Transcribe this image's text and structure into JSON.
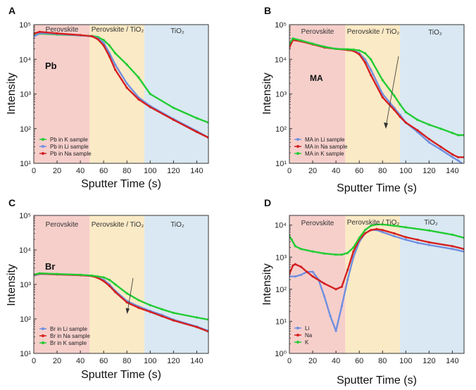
{
  "figure": {
    "panels": [
      {
        "letter": "A",
        "inset_label": "Pb",
        "regions": [
          "Perovskite",
          "Perovskite / TiO₂",
          "TiO₂"
        ]
      },
      {
        "letter": "B",
        "inset_label": "MA",
        "regions": [
          "Perovskite",
          "Perovskite / TiO₂",
          "TiO₂"
        ]
      },
      {
        "letter": "C",
        "inset_label": "Br",
        "regions": [
          "Perovskite",
          "Perovskite / TiO₂",
          "TiO₂"
        ]
      },
      {
        "letter": "D",
        "inset_label": "",
        "regions": [
          "Perovskite",
          "Perovskite / TiO₂",
          "TiO₂"
        ]
      }
    ]
  },
  "chart_data": [
    {
      "type": "line",
      "title": "",
      "xlabel": "Sputter Time (s)",
      "ylabel": "Intensity",
      "xlim": [
        0,
        150
      ],
      "ylim": [
        10,
        100000
      ],
      "yscale": "log",
      "xticks": [
        0,
        20,
        40,
        60,
        80,
        100,
        120,
        140
      ],
      "region_colors": [
        "#f6cfcb",
        "#fbeac6",
        "#d9e8f2"
      ],
      "region_bounds": [
        0,
        48,
        95,
        150
      ],
      "legend_position": "lower-left",
      "series": [
        {
          "name": "Pb in K sample",
          "color": "#22cc33",
          "x": [
            0,
            5,
            20,
            40,
            50,
            55,
            60,
            65,
            70,
            80,
            90,
            100,
            120,
            140,
            150
          ],
          "y": [
            48000,
            55000,
            52000,
            49000,
            47000,
            44000,
            36000,
            25000,
            15000,
            7000,
            3000,
            1000,
            400,
            200,
            150
          ]
        },
        {
          "name": "Pb in Li sample",
          "color": "#6f8fe0",
          "x": [
            0,
            5,
            20,
            40,
            50,
            55,
            60,
            65,
            70,
            80,
            90,
            100,
            120,
            140,
            150
          ],
          "y": [
            45000,
            57000,
            54000,
            49000,
            46000,
            40000,
            30000,
            15000,
            7000,
            2000,
            800,
            450,
            190,
            85,
            55
          ]
        },
        {
          "name": "Pb in Na sample",
          "color": "#d42020",
          "x": [
            0,
            5,
            20,
            40,
            50,
            55,
            60,
            65,
            70,
            80,
            90,
            100,
            120,
            140,
            150
          ],
          "y": [
            55000,
            62000,
            56000,
            50000,
            46000,
            38000,
            25000,
            12000,
            5000,
            1500,
            700,
            420,
            180,
            80,
            55
          ]
        }
      ]
    },
    {
      "type": "line",
      "title": "",
      "xlabel": "Sputter Time (s)",
      "ylabel": "Intensity",
      "xlim": [
        0,
        150
      ],
      "ylim": [
        10,
        100000
      ],
      "yscale": "log",
      "xticks": [
        0,
        20,
        40,
        60,
        80,
        100,
        120,
        140
      ],
      "region_colors": [
        "#f6cfcb",
        "#fbeac6",
        "#d9e8f2"
      ],
      "region_bounds": [
        0,
        48,
        95,
        150
      ],
      "legend_position": "lower-left",
      "series": [
        {
          "name": "MA in Li sample",
          "color": "#6f8fe0",
          "x": [
            0,
            3,
            10,
            20,
            30,
            40,
            50,
            55,
            60,
            65,
            70,
            80,
            90,
            95,
            100,
            110,
            120,
            130,
            140,
            145,
            150
          ],
          "y": [
            25000,
            38000,
            34000,
            28000,
            23000,
            20000,
            19000,
            18000,
            15000,
            10000,
            5000,
            1000,
            400,
            250,
            150,
            80,
            40,
            25,
            15,
            12,
            9
          ]
        },
        {
          "name": "MA in Na sample",
          "color": "#d42020",
          "x": [
            0,
            3,
            10,
            20,
            30,
            40,
            50,
            55,
            60,
            65,
            70,
            80,
            90,
            95,
            100,
            110,
            120,
            130,
            140,
            145,
            150
          ],
          "y": [
            22000,
            36000,
            33000,
            27000,
            22000,
            20000,
            18500,
            17500,
            14000,
            8000,
            3500,
            800,
            350,
            220,
            150,
            90,
            50,
            30,
            18,
            15,
            15
          ]
        },
        {
          "name": "MA in K sample",
          "color": "#22cc33",
          "x": [
            0,
            3,
            10,
            20,
            30,
            40,
            50,
            55,
            60,
            65,
            70,
            80,
            90,
            95,
            100,
            110,
            120,
            130,
            140,
            145,
            150
          ],
          "y": [
            28000,
            40000,
            35000,
            28000,
            23000,
            20000,
            19500,
            19000,
            18000,
            15000,
            10000,
            2500,
            900,
            500,
            300,
            180,
            130,
            100,
            75,
            65,
            65
          ]
        }
      ]
    },
    {
      "type": "line",
      "title": "",
      "xlabel": "Sputter Time (s)",
      "ylabel": "Intensity",
      "xlim": [
        0,
        150
      ],
      "ylim": [
        10,
        100000
      ],
      "yscale": "log",
      "xticks": [
        0,
        20,
        40,
        60,
        80,
        100,
        120,
        140
      ],
      "region_colors": [
        "#f6cfcb",
        "#fbeac6",
        "#d9e8f2"
      ],
      "region_bounds": [
        0,
        48,
        95,
        150
      ],
      "legend_position": "lower-left",
      "series": [
        {
          "name": "Br in Li sample",
          "color": "#6f8fe0",
          "x": [
            0,
            5,
            20,
            40,
            50,
            55,
            60,
            65,
            70,
            80,
            90,
            100,
            110,
            120,
            140,
            150
          ],
          "y": [
            1800,
            2000,
            1950,
            1850,
            1750,
            1600,
            1350,
            1000,
            650,
            330,
            230,
            170,
            130,
            95,
            60,
            45
          ]
        },
        {
          "name": "Br in Na sample",
          "color": "#d42020",
          "x": [
            0,
            5,
            20,
            40,
            50,
            55,
            60,
            65,
            70,
            80,
            90,
            100,
            110,
            120,
            140,
            150
          ],
          "y": [
            1850,
            2050,
            1950,
            1850,
            1750,
            1550,
            1250,
            900,
            600,
            300,
            210,
            160,
            120,
            90,
            58,
            43
          ]
        },
        {
          "name": "Br in K sample",
          "color": "#22cc33",
          "x": [
            0,
            5,
            20,
            40,
            50,
            55,
            60,
            65,
            70,
            80,
            90,
            100,
            110,
            120,
            140,
            150
          ],
          "y": [
            1900,
            2100,
            2000,
            1900,
            1800,
            1700,
            1600,
            1350,
            1000,
            550,
            350,
            250,
            190,
            150,
            110,
            95
          ]
        }
      ]
    },
    {
      "type": "line",
      "title": "",
      "xlabel": "Sputter Time (s)",
      "ylabel": "Intensity",
      "xlim": [
        0,
        150
      ],
      "ylim": [
        1,
        20000
      ],
      "yscale": "log",
      "xticks": [
        0,
        20,
        40,
        60,
        80,
        100,
        120,
        140
      ],
      "region_colors": [
        "#f6cfcb",
        "#fbeac6",
        "#d9e8f2"
      ],
      "region_bounds": [
        0,
        48,
        95,
        150
      ],
      "legend_position": "lower-left",
      "series": [
        {
          "name": "Li",
          "color": "#6f8fe0",
          "x": [
            0,
            5,
            10,
            15,
            20,
            25,
            30,
            35,
            40,
            45,
            50,
            55,
            60,
            65,
            70,
            75,
            80,
            90,
            100,
            110,
            120,
            140,
            150
          ],
          "y": [
            250,
            250,
            280,
            350,
            350,
            200,
            60,
            15,
            5,
            30,
            200,
            1000,
            3000,
            5500,
            7000,
            7000,
            6000,
            4500,
            3500,
            2800,
            2400,
            1800,
            1500
          ]
        },
        {
          "name": "Na",
          "color": "#d42020",
          "x": [
            0,
            3,
            5,
            10,
            15,
            20,
            30,
            40,
            45,
            50,
            55,
            60,
            65,
            70,
            75,
            80,
            90,
            100,
            110,
            120,
            140,
            150
          ],
          "y": [
            300,
            550,
            600,
            500,
            350,
            250,
            150,
            100,
            120,
            400,
            1500,
            3500,
            5500,
            7000,
            7500,
            7000,
            5500,
            4200,
            3500,
            2900,
            2200,
            1800
          ]
        },
        {
          "name": "K",
          "color": "#22cc33",
          "x": [
            0,
            2,
            5,
            10,
            20,
            30,
            40,
            45,
            50,
            55,
            60,
            65,
            70,
            75,
            80,
            90,
            100,
            120,
            140,
            150
          ],
          "y": [
            4500,
            3500,
            2200,
            1800,
            1500,
            1300,
            1200,
            1200,
            1350,
            2000,
            4000,
            7000,
            9500,
            10500,
            10500,
            9500,
            8500,
            6800,
            5000,
            4000
          ]
        }
      ]
    }
  ]
}
